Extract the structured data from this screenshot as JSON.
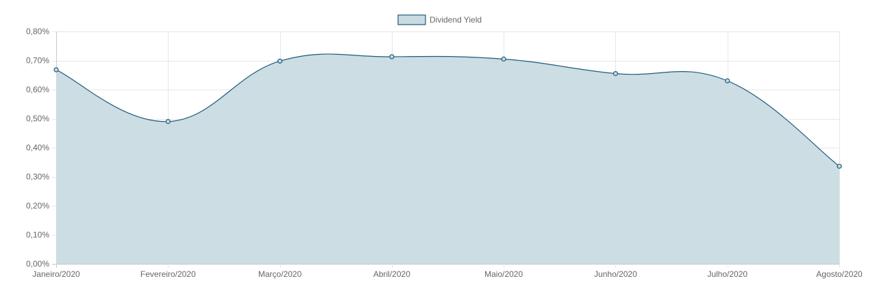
{
  "chart_data": {
    "type": "area",
    "legend": {
      "label": "Dividend Yield",
      "position": "top-center"
    },
    "categories": [
      "Janeiro/2020",
      "Fevereiro/2020",
      "Março/2020",
      "Abril/2020",
      "Maio/2020",
      "Junho/2020",
      "Julho/2020",
      "Agosto/2020"
    ],
    "series": [
      {
        "name": "Dividend Yield",
        "values": [
          0.668,
          0.49,
          0.698,
          0.713,
          0.705,
          0.655,
          0.63,
          0.336
        ]
      }
    ],
    "ylim": [
      0,
      0.8
    ],
    "y_ticks": [
      "0,00%",
      "0,10%",
      "0,20%",
      "0,30%",
      "0,40%",
      "0,50%",
      "0,60%",
      "0,70%",
      "0,80%"
    ],
    "y_tick_values": [
      0,
      0.1,
      0.2,
      0.3,
      0.4,
      0.5,
      0.6,
      0.7,
      0.8
    ],
    "grid": true,
    "colors": {
      "line": "#1e5a7a",
      "fill": "#c9dbe2",
      "grid": "#e6e6e6",
      "axis": "#c9c9c9"
    }
  }
}
